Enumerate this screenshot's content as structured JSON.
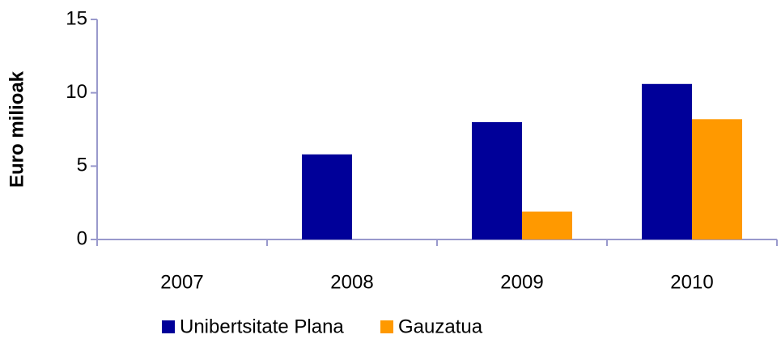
{
  "chart_data": {
    "type": "bar",
    "y_label": "Euro milioak",
    "categories": [
      "2007",
      "2008",
      "2009",
      "2010"
    ],
    "series": [
      {
        "name": "Unibertsitate Plana",
        "color": "#000099",
        "values": [
          0,
          5.8,
          8.0,
          10.6
        ]
      },
      {
        "name": "Gauzatua",
        "color": "#ff9900",
        "values": [
          0,
          0,
          1.9,
          8.2
        ]
      }
    ],
    "ylim": [
      0,
      15
    ],
    "yticks": [
      0,
      5,
      10,
      15
    ],
    "legend": "bottom"
  }
}
